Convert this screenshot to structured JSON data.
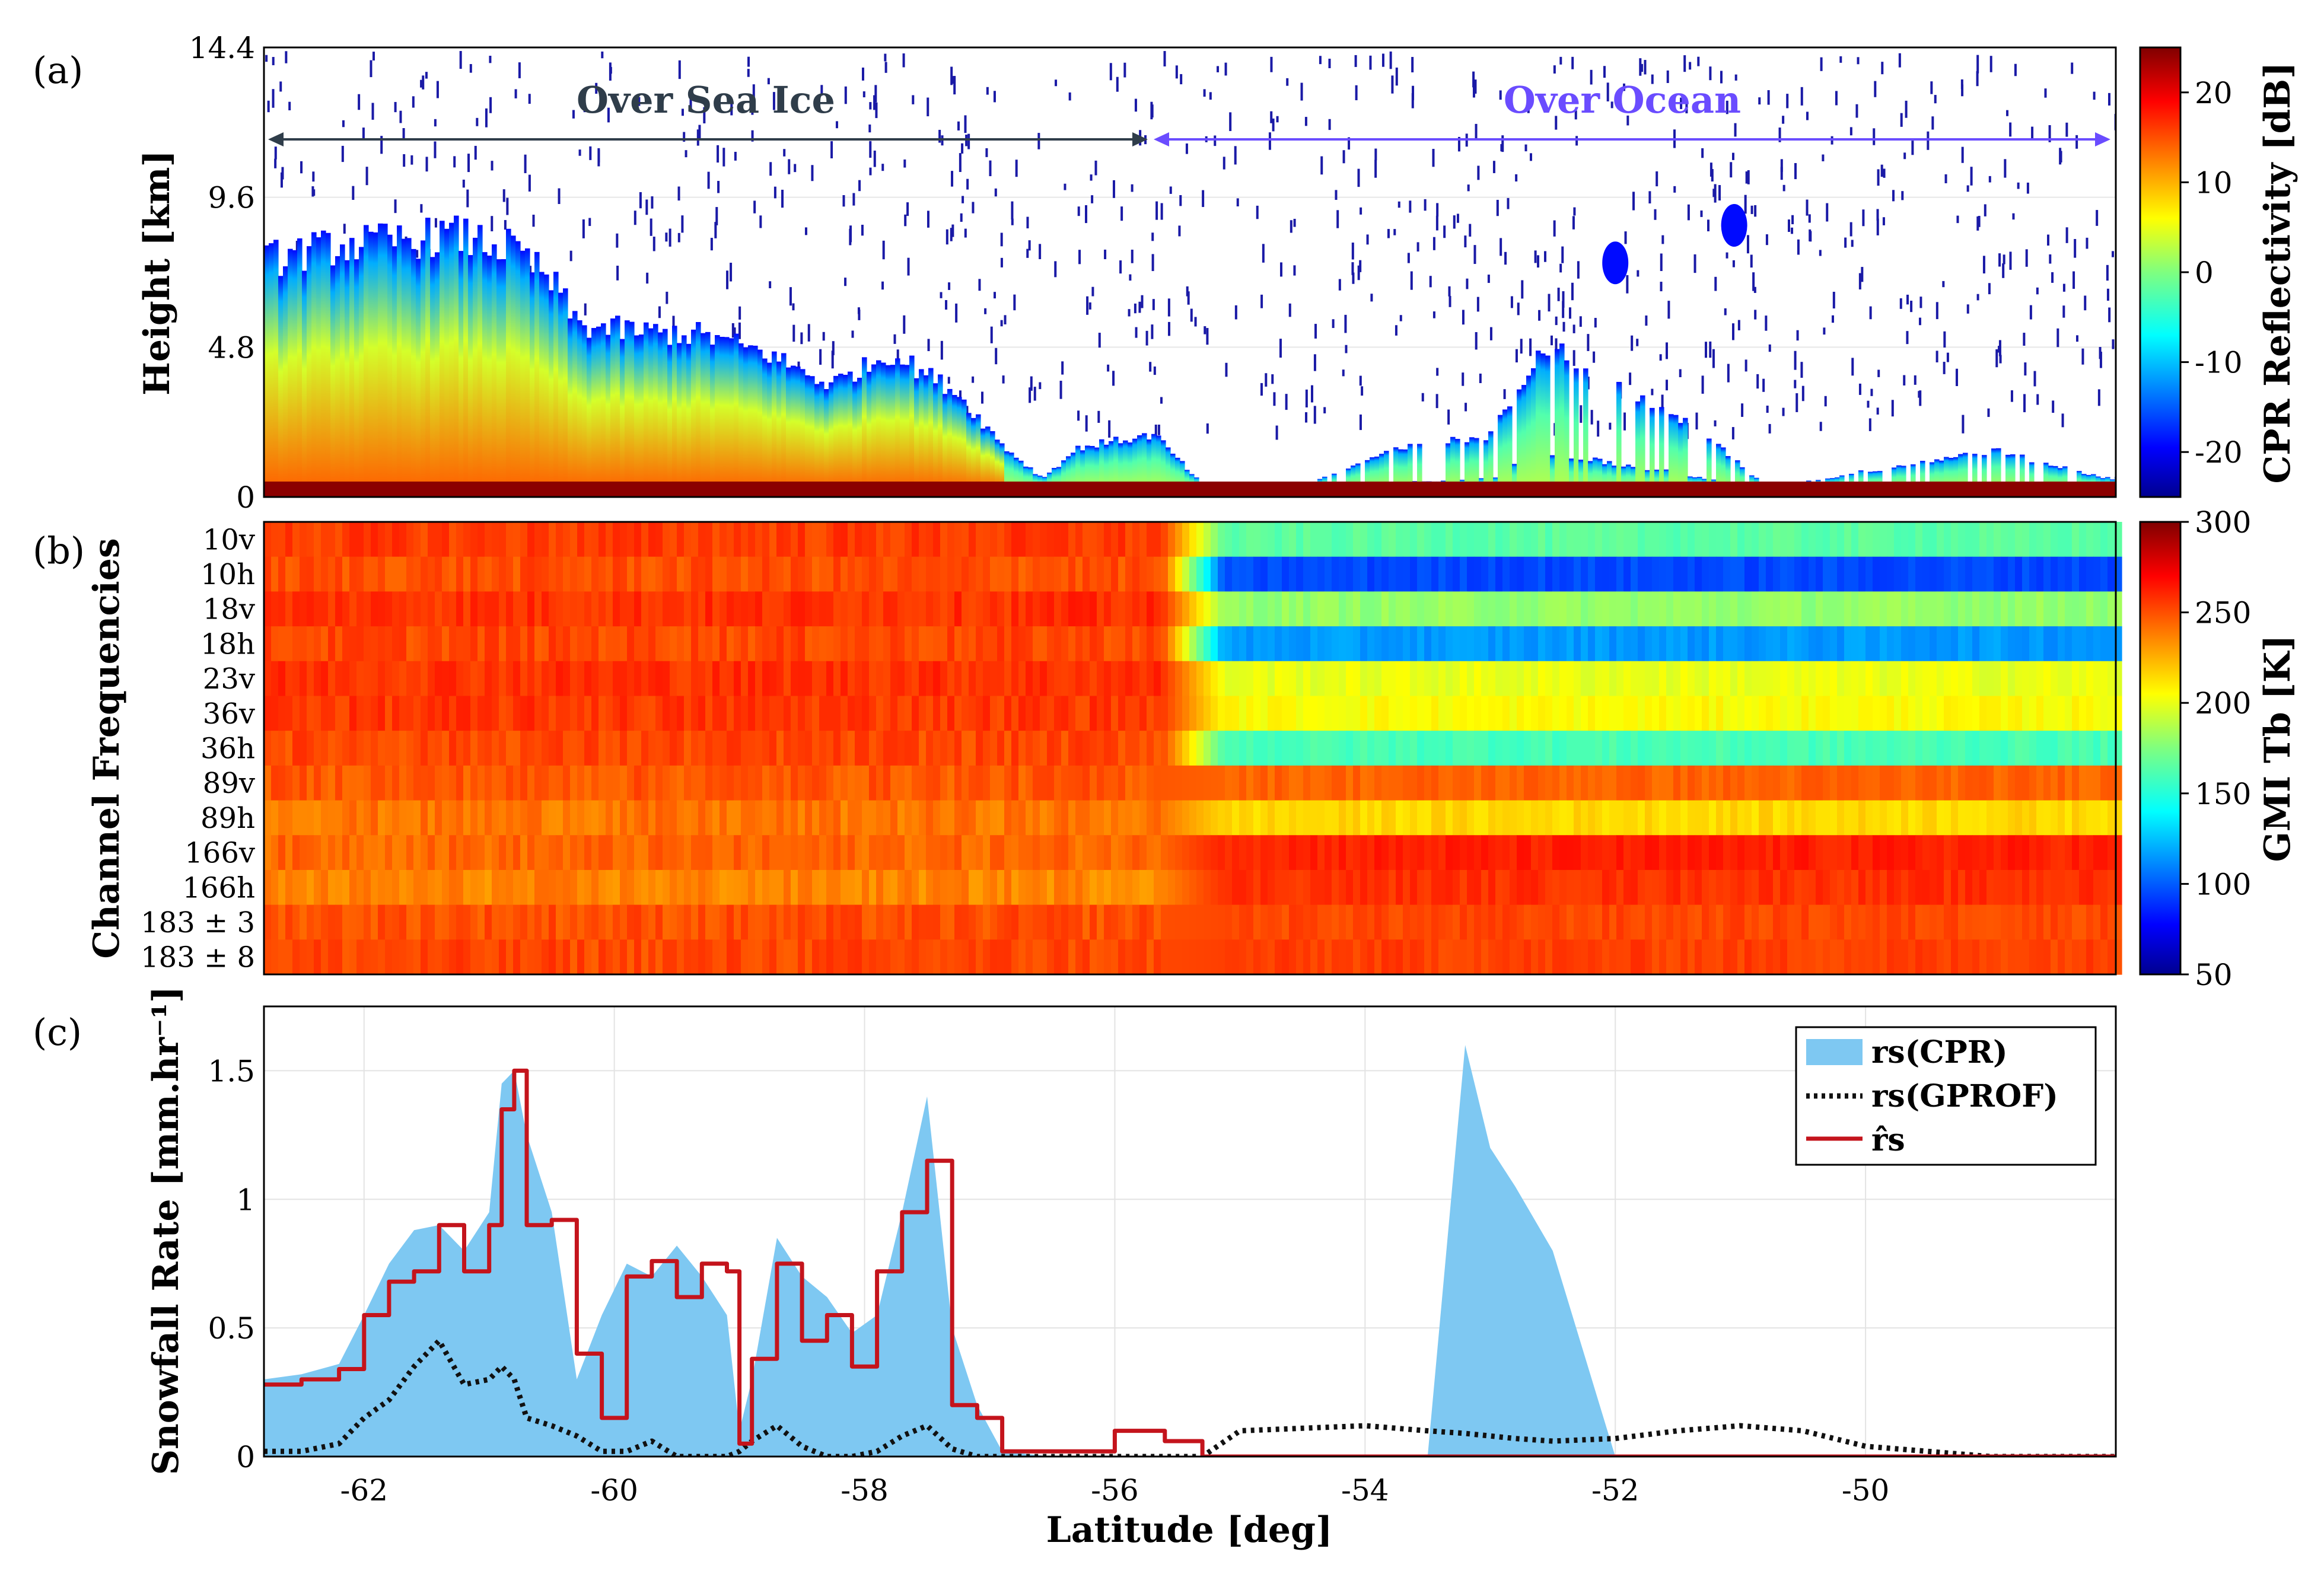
{
  "chart_data": [
    {
      "panel_label": "(a)",
      "type": "heatmap",
      "ylabel": "Height [km]",
      "yticks": [
        "14.4",
        "9.6",
        "4.8",
        "0"
      ],
      "ylim": [
        0,
        14.4
      ],
      "xlim": [
        -62.8,
        -48.0
      ],
      "colorbar_label": "CPR Reflectivity [dB]",
      "colorbar_ticks": [
        "20",
        "10",
        "0",
        "-10",
        "-20"
      ],
      "colorbar_range": [
        -25,
        25
      ],
      "annotations": [
        {
          "text": "Over Sea Ice",
          "x_from": -62.8,
          "x_to": -55.9,
          "y": 11.4,
          "color": "#2f3d4a"
        },
        {
          "text": "Over Ocean",
          "x_from": -55.9,
          "x_to": -48.1,
          "y": 11.4,
          "color": "#6a4cff"
        }
      ],
      "cloud_top_km": [
        {
          "lat": -62.8,
          "top": 7.6
        },
        {
          "lat": -62.3,
          "top": 8.0
        },
        {
          "lat": -61.8,
          "top": 8.2
        },
        {
          "lat": -61.3,
          "top": 8.4
        },
        {
          "lat": -60.8,
          "top": 7.9
        },
        {
          "lat": -60.5,
          "top": 6.8
        },
        {
          "lat": -60.3,
          "top": 5.5
        },
        {
          "lat": -59.8,
          "top": 5.3
        },
        {
          "lat": -59.3,
          "top": 5.2
        },
        {
          "lat": -58.8,
          "top": 4.6
        },
        {
          "lat": -58.3,
          "top": 3.6
        },
        {
          "lat": -57.8,
          "top": 4.6
        },
        {
          "lat": -57.3,
          "top": 3.4
        },
        {
          "lat": -56.9,
          "top": 1.6
        },
        {
          "lat": -56.6,
          "top": 0.6
        },
        {
          "lat": -56.3,
          "top": 1.6
        },
        {
          "lat": -55.7,
          "top": 2.0
        },
        {
          "lat": -55.3,
          "top": 0.3
        },
        {
          "lat": -54.5,
          "top": 0.4
        },
        {
          "lat": -53.8,
          "top": 1.5
        },
        {
          "lat": -53.0,
          "top": 2.0
        },
        {
          "lat": -52.6,
          "top": 5.0
        },
        {
          "lat": -52.0,
          "top": 3.5
        },
        {
          "lat": -51.4,
          "top": 2.3
        },
        {
          "lat": -50.8,
          "top": 0.3
        },
        {
          "lat": -49.0,
          "top": 1.5
        },
        {
          "lat": -48.1,
          "top": 0.6
        }
      ]
    },
    {
      "panel_label": "(b)",
      "type": "heatmap",
      "ylabel": "Channel Frequencies",
      "channels": [
        "10v",
        "10h",
        "18v",
        "18h",
        "23v",
        "36v",
        "36h",
        "89v",
        "89h",
        "166v",
        "166h",
        "183 ± 3",
        "183 ± 8"
      ],
      "colorbar_label": "GMI Tb [K]",
      "colorbar_ticks": [
        "300",
        "250",
        "200",
        "150",
        "100",
        "50"
      ],
      "colorbar_range": [
        50,
        300
      ],
      "transition_lat": -55.4,
      "tb_over_sea_ice_K": [
        255,
        250,
        258,
        252,
        258,
        256,
        252,
        248,
        240,
        244,
        236,
        250,
        252
      ],
      "tb_over_ocean_K": [
        165,
        95,
        180,
        115,
        200,
        205,
        160,
        245,
        215,
        262,
        258,
        252,
        254
      ]
    },
    {
      "panel_label": "(c)",
      "type": "line",
      "xlabel": "Latitude [deg]",
      "ylabel": "Snowfall Rate [mm.hr⁻¹]",
      "xticks": [
        "-62",
        "-60",
        "-58",
        "-56",
        "-54",
        "-52",
        "-50"
      ],
      "xtick_values": [
        -62,
        -60,
        -58,
        -56,
        -54,
        -52,
        -50
      ],
      "yticks": [
        "0",
        "0.5",
        "1",
        "1.5"
      ],
      "ytick_values": [
        0,
        0.5,
        1,
        1.5
      ],
      "xlim": [
        -62.8,
        -48.0
      ],
      "ylim": [
        0,
        1.75
      ],
      "grid": true,
      "legend_position": "top-right",
      "legend": [
        "rs(CPR)",
        "rs(GPROF)",
        "r̂s"
      ],
      "x": [
        -62.8,
        -62.5,
        -62.2,
        -62.0,
        -61.8,
        -61.6,
        -61.4,
        -61.2,
        -61.0,
        -60.9,
        -60.8,
        -60.7,
        -60.5,
        -60.3,
        -60.1,
        -59.9,
        -59.7,
        -59.5,
        -59.3,
        -59.1,
        -59.0,
        -58.9,
        -58.7,
        -58.5,
        -58.3,
        -58.1,
        -57.9,
        -57.7,
        -57.5,
        -57.3,
        -57.1,
        -56.9,
        -56.5,
        -56.0,
        -55.6,
        -55.3,
        -55.0,
        -54.5,
        -54.0,
        -53.5,
        -53.2,
        -53.0,
        -52.8,
        -52.5,
        -52.0,
        -51.5,
        -51.0,
        -50.5,
        -50.0,
        -49.5,
        -49.0,
        -48.5,
        -48.0
      ],
      "series": [
        {
          "name": "rs(CPR)",
          "style": "area",
          "color": "#7ec8f2",
          "values": [
            0.3,
            0.32,
            0.36,
            0.55,
            0.75,
            0.88,
            0.9,
            0.8,
            0.95,
            1.45,
            1.5,
            1.25,
            0.95,
            0.3,
            0.55,
            0.75,
            0.7,
            0.82,
            0.7,
            0.55,
            0.1,
            0.3,
            0.85,
            0.7,
            0.62,
            0.48,
            0.55,
            0.95,
            1.4,
            0.5,
            0.2,
            0.02,
            0.0,
            0.0,
            0.0,
            0.0,
            0.0,
            0.0,
            0.0,
            0.0,
            1.6,
            1.2,
            1.05,
            0.8,
            0.0,
            0.0,
            0.0,
            0.0,
            0.0,
            0.0,
            0.0,
            0.0,
            0.0
          ]
        },
        {
          "name": "rs(GPROF)",
          "style": "dotted",
          "color": "#111111",
          "values": [
            0.02,
            0.02,
            0.05,
            0.15,
            0.22,
            0.35,
            0.45,
            0.28,
            0.3,
            0.35,
            0.3,
            0.15,
            0.12,
            0.08,
            0.02,
            0.02,
            0.06,
            0.0,
            0.0,
            0.0,
            0.02,
            0.06,
            0.12,
            0.04,
            0.0,
            0.0,
            0.02,
            0.08,
            0.12,
            0.03,
            0.0,
            0.0,
            0.0,
            0.0,
            0.0,
            0.0,
            0.1,
            0.11,
            0.12,
            0.1,
            0.09,
            0.08,
            0.07,
            0.06,
            0.07,
            0.1,
            0.12,
            0.1,
            0.04,
            0.02,
            0.0,
            0.0,
            0.0
          ]
        },
        {
          "name": "r̂s",
          "style": "line",
          "color": "#c4141c",
          "values": [
            0.28,
            0.3,
            0.34,
            0.55,
            0.68,
            0.72,
            0.9,
            0.72,
            0.9,
            1.35,
            1.5,
            0.9,
            0.92,
            0.4,
            0.15,
            0.7,
            0.76,
            0.62,
            0.75,
            0.72,
            0.05,
            0.38,
            0.75,
            0.45,
            0.55,
            0.35,
            0.72,
            0.95,
            1.15,
            0.2,
            0.15,
            0.02,
            0.02,
            0.1,
            0.06,
            0.0,
            0.0,
            0.0,
            0.0,
            0.0,
            0.0,
            0.0,
            0.0,
            0.0,
            0.0,
            0.0,
            0.0,
            0.0,
            0.0,
            0.0,
            0.0,
            0.0,
            0.0
          ]
        }
      ]
    }
  ]
}
